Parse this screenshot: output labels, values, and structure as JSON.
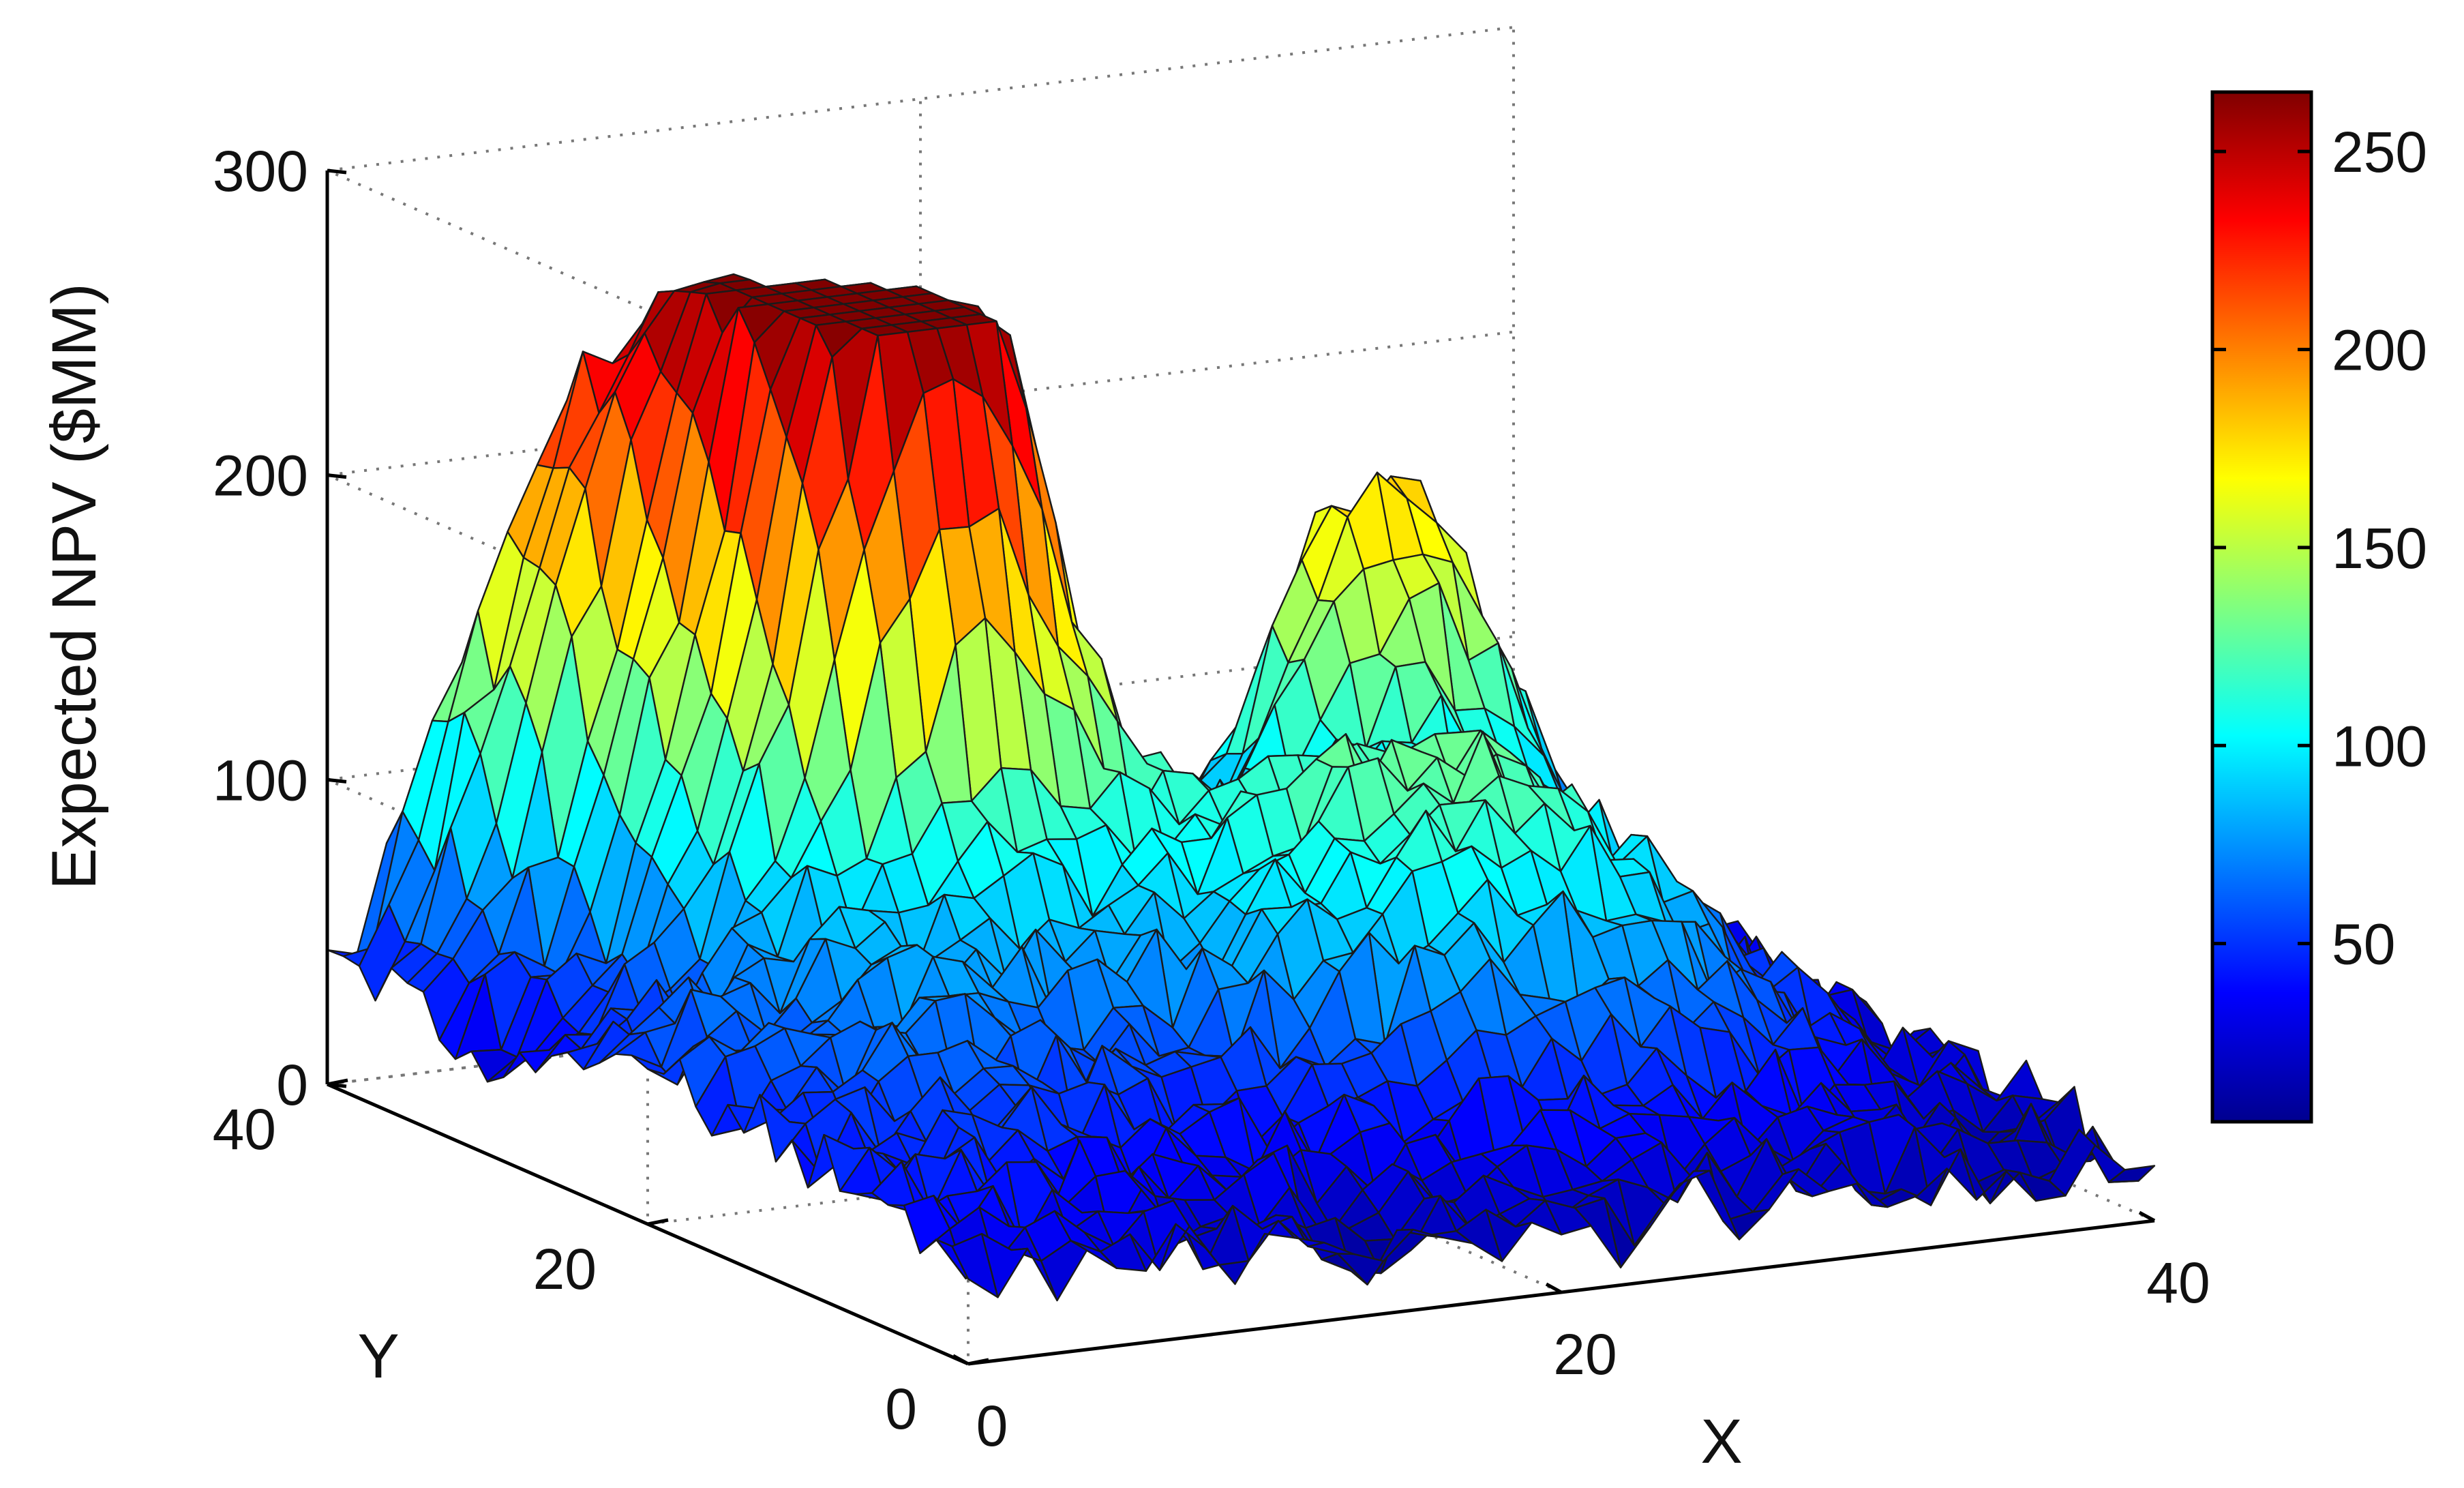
{
  "chart_data": {
    "type": "surface3d",
    "zlabel": "Expected NPV ($MM)",
    "xlabel": "X",
    "ylabel": "Y",
    "xlim": [
      0,
      40
    ],
    "ylim": [
      0,
      40
    ],
    "zlim": [
      0,
      300
    ],
    "x_ticks": [
      0,
      20,
      40
    ],
    "y_ticks": [
      0,
      20,
      40
    ],
    "z_ticks": [
      0,
      100,
      200,
      300
    ],
    "colorbar": {
      "min": 5,
      "max": 265,
      "ticks": [
        50,
        100,
        150,
        200,
        250
      ],
      "colormap": "jet"
    },
    "grid": true,
    "grid_size": [
      41,
      41
    ],
    "peaks": [
      {
        "x": 13,
        "y": 28,
        "z": 265
      },
      {
        "x": 11,
        "y": 33,
        "z": 175
      },
      {
        "x": 7,
        "y": 38,
        "z": 165
      },
      {
        "x": 31,
        "y": 31,
        "z": 155
      },
      {
        "x": 26,
        "y": 16,
        "z": 95
      },
      {
        "x": 6,
        "y": 20,
        "z": 40
      },
      {
        "x": 3,
        "y": 8,
        "z": 30
      }
    ],
    "base_level": 18
  }
}
